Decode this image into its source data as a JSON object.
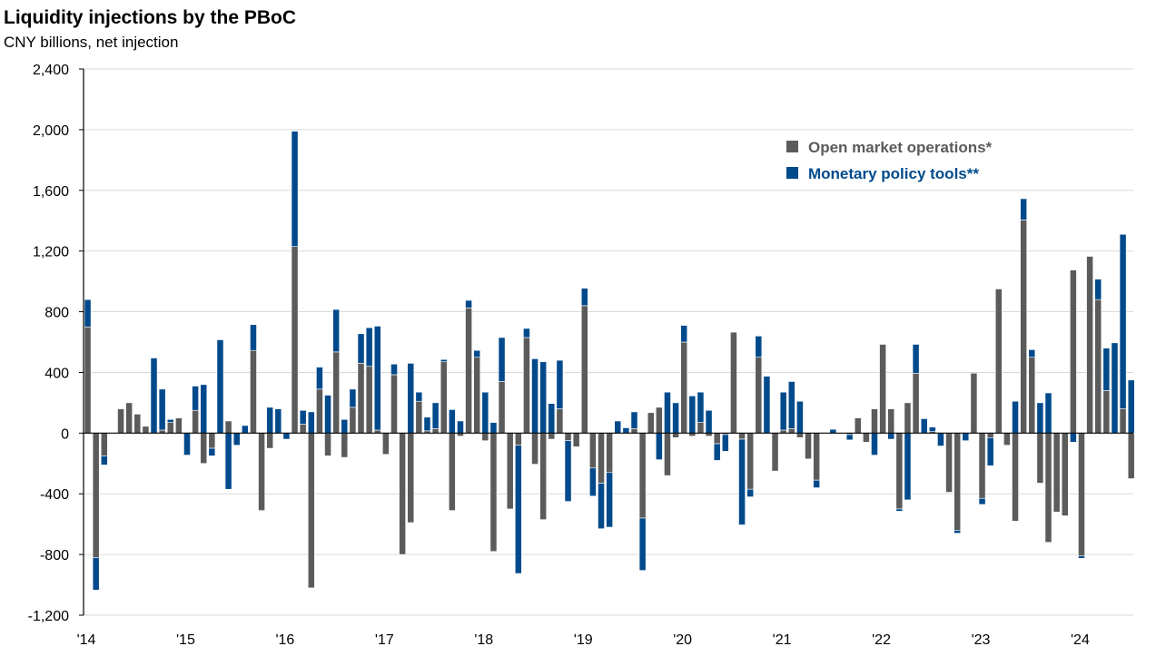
{
  "title": "Liquidity injections by the PBoC",
  "subtitle": "CNY billions, net injection",
  "chart_data": {
    "type": "bar",
    "stacked": true,
    "title": "Liquidity injections by the PBoC",
    "subtitle": "CNY billions, net injection",
    "ylabel": "",
    "xlabel": "",
    "ylim": [
      -1200,
      2400
    ],
    "yticks": [
      -1200,
      -800,
      -400,
      0,
      400,
      800,
      1200,
      1600,
      2000,
      2400
    ],
    "ytick_labels": [
      "-1,200",
      "-800",
      "-400",
      "0",
      "400",
      "800",
      "1,200",
      "1,600",
      "2,000",
      "2,400"
    ],
    "xtick_labels": [
      "'14",
      "'15",
      "'16",
      "'17",
      "'18",
      "'19",
      "'20",
      "'21",
      "'22",
      "'23",
      "'24"
    ],
    "xtick_positions": [
      0,
      12,
      24,
      36,
      48,
      60,
      72,
      84,
      96,
      108,
      120
    ],
    "grid": "horizontal",
    "legend_position": "top-right",
    "series": [
      {
        "name": "Open market operations*",
        "color": "#5b5b5b",
        "values": [
          700,
          -820,
          -150,
          0,
          160,
          200,
          125,
          45,
          0,
          20,
          70,
          100,
          0,
          150,
          -200,
          -100,
          0,
          80,
          0,
          0,
          545,
          -510,
          -100,
          0,
          0,
          1230,
          60,
          -1020,
          290,
          -150,
          535,
          -160,
          170,
          460,
          440,
          20,
          -140,
          385,
          -800,
          -590,
          210,
          15,
          30,
          470,
          -510,
          -20,
          825,
          500,
          -50,
          -780,
          340,
          -500,
          -80,
          630,
          -205,
          -570,
          -40,
          160,
          -50,
          -90,
          840,
          -230,
          -330,
          -260,
          0,
          0,
          30,
          -560,
          135,
          170,
          -280,
          -30,
          600,
          -20,
          70,
          -20,
          -70,
          -10,
          665,
          -40,
          -370,
          500,
          0,
          -250,
          20,
          30,
          -30,
          -170,
          -310,
          0,
          0,
          0,
          -10,
          100,
          -60,
          160,
          585,
          160,
          -500,
          200,
          395,
          0,
          10,
          0,
          -390,
          -640,
          0,
          395,
          -430,
          -30,
          950,
          -80,
          -580,
          1405,
          500,
          -330,
          -720,
          -520,
          -545,
          1075,
          -810,
          1165,
          880,
          280,
          0,
          160,
          -300
        ]
      },
      {
        "name": "Monetary policy tools**",
        "color": "#004a8c",
        "values": [
          180,
          -215,
          -60,
          0,
          0,
          0,
          0,
          0,
          495,
          270,
          20,
          0,
          -145,
          160,
          320,
          -50,
          615,
          -370,
          -80,
          50,
          170,
          0,
          170,
          160,
          -40,
          760,
          90,
          140,
          145,
          250,
          280,
          90,
          120,
          195,
          255,
          685,
          0,
          70,
          0,
          460,
          60,
          90,
          170,
          15,
          155,
          80,
          50,
          45,
          270,
          70,
          290,
          0,
          -845,
          60,
          490,
          470,
          195,
          320,
          -400,
          0,
          115,
          -185,
          -300,
          -360,
          80,
          35,
          110,
          -345,
          0,
          -175,
          270,
          200,
          110,
          245,
          200,
          150,
          -110,
          -110,
          0,
          -565,
          -50,
          140,
          375,
          0,
          250,
          310,
          210,
          0,
          -50,
          0,
          25,
          0,
          -35,
          0,
          0,
          -145,
          0,
          -40,
          -15,
          -440,
          190,
          95,
          30,
          -85,
          0,
          -20,
          -50,
          0,
          -40,
          -185,
          0,
          0,
          210,
          140,
          50,
          200,
          265,
          0,
          0,
          -60,
          -15,
          0,
          135,
          280,
          595,
          1150,
          350
        ]
      }
    ]
  }
}
